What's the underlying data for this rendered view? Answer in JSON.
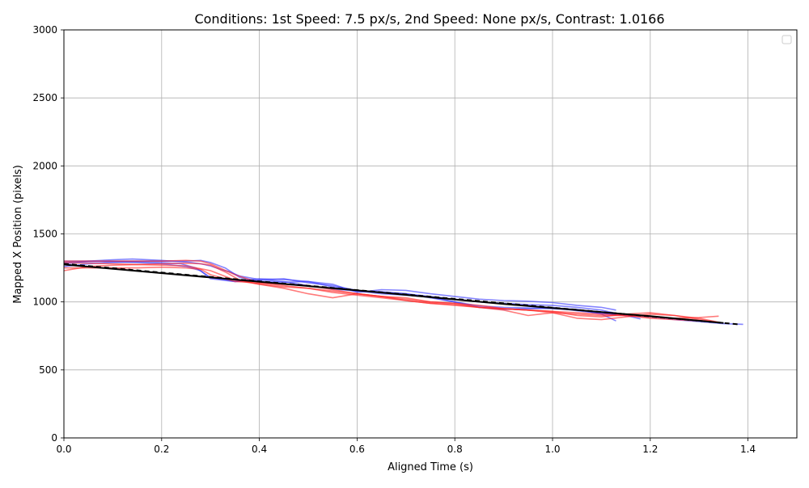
{
  "chart_data": {
    "type": "line",
    "title": "Conditions: 1st Speed: 7.5 px/s, 2nd Speed: None px/s, Contrast: 1.0166",
    "xlabel": "Aligned Time (s)",
    "ylabel": "Mapped X Position (pixels)",
    "xlim": [
      0,
      1.5
    ],
    "ylim": [
      0,
      3000
    ],
    "xticks": [
      0.0,
      0.2,
      0.4,
      0.6,
      0.8,
      1.0,
      1.2,
      1.4
    ],
    "xtick_labels": [
      "0.0",
      "0.2",
      "0.4",
      "0.6",
      "0.8",
      "1.0",
      "1.2",
      "1.4"
    ],
    "yticks": [
      0,
      500,
      1000,
      1500,
      2000,
      2500,
      3000
    ],
    "ytick_labels": [
      "0",
      "500",
      "1000",
      "1500",
      "2000",
      "2500",
      "3000"
    ],
    "grid": true,
    "legend": "top-right (empty)",
    "colors": {
      "series_a": "#3333ff",
      "series_b": "#ff2222",
      "reference": "#000000"
    },
    "series": [
      {
        "group": "a",
        "x": [
          0.0,
          0.05,
          0.1,
          0.14,
          0.2,
          0.24,
          0.26,
          0.28,
          0.3,
          0.32,
          0.34,
          0.36,
          0.4,
          0.45,
          0.5,
          0.55,
          0.6,
          0.65,
          0.7,
          0.75,
          0.8,
          0.85,
          0.9,
          0.95,
          1.0,
          1.05,
          1.1,
          1.15,
          1.18
        ],
        "y": [
          1290,
          1300,
          1310,
          1315,
          1305,
          1295,
          1290,
          1280,
          1265,
          1240,
          1220,
          1190,
          1165,
          1150,
          1120,
          1095,
          1080,
          1075,
          1060,
          1040,
          1020,
          1000,
          990,
          980,
          975,
          960,
          940,
          900,
          875
        ]
      },
      {
        "group": "a",
        "x": [
          0.0,
          0.05,
          0.1,
          0.15,
          0.2,
          0.24,
          0.27,
          0.3,
          0.35,
          0.4,
          0.45,
          0.5,
          0.55,
          0.6,
          0.65,
          0.7,
          0.75,
          0.8,
          0.85,
          0.9,
          0.95,
          1.0,
          1.05,
          1.1,
          1.13
        ],
        "y": [
          1260,
          1280,
          1290,
          1295,
          1290,
          1280,
          1250,
          1180,
          1150,
          1170,
          1165,
          1150,
          1110,
          1080,
          1060,
          1050,
          1035,
          1000,
          970,
          960,
          955,
          950,
          940,
          920,
          905
        ]
      },
      {
        "group": "a",
        "x": [
          0.0,
          0.05,
          0.1,
          0.15,
          0.2,
          0.25,
          0.28,
          0.3,
          0.33,
          0.36,
          0.4,
          0.45,
          0.5,
          0.55,
          0.6,
          0.65,
          0.7,
          0.75,
          0.8,
          0.85,
          0.9,
          0.95,
          1.0,
          1.05,
          1.1,
          1.13
        ],
        "y": [
          1280,
          1295,
          1300,
          1300,
          1300,
          1300,
          1305,
          1290,
          1250,
          1180,
          1150,
          1145,
          1150,
          1130,
          1070,
          1090,
          1085,
          1060,
          1040,
          1020,
          1010,
          1005,
          995,
          975,
          960,
          940
        ]
      },
      {
        "group": "a",
        "x": [
          0.0,
          0.05,
          0.1,
          0.15,
          0.2,
          0.25,
          0.28,
          0.3,
          0.35,
          0.4,
          0.45,
          0.5,
          0.55,
          0.6,
          0.65,
          0.7,
          0.75,
          0.8,
          0.85,
          0.9,
          0.95,
          1.0,
          1.05,
          1.1,
          1.13
        ],
        "y": [
          1300,
          1300,
          1295,
          1290,
          1280,
          1260,
          1230,
          1170,
          1150,
          1160,
          1170,
          1140,
          1120,
          1085,
          1070,
          1060,
          1030,
          1000,
          960,
          945,
          950,
          955,
          945,
          910,
          860
        ]
      },
      {
        "group": "a",
        "x": [
          1.0,
          1.05,
          1.1,
          1.15,
          1.2,
          1.25,
          1.3,
          1.35,
          1.39
        ],
        "y": [
          960,
          935,
          915,
          900,
          890,
          870,
          855,
          840,
          835
        ]
      },
      {
        "group": "b",
        "x": [
          0.0,
          0.05,
          0.1,
          0.15,
          0.2,
          0.25,
          0.28,
          0.3,
          0.33,
          0.36,
          0.4,
          0.45,
          0.5,
          0.55,
          0.6,
          0.65,
          0.7,
          0.75,
          0.8,
          0.85,
          0.9,
          0.95,
          1.0,
          1.05,
          1.1,
          1.15,
          1.2,
          1.25,
          1.3,
          1.34
        ],
        "y": [
          1230,
          1260,
          1270,
          1275,
          1280,
          1285,
          1280,
          1270,
          1220,
          1160,
          1130,
          1100,
          1060,
          1030,
          1060,
          1040,
          1010,
          990,
          975,
          960,
          940,
          900,
          920,
          880,
          870,
          890,
          910,
          900,
          880,
          850
        ]
      },
      {
        "group": "b",
        "x": [
          0.0,
          0.05,
          0.1,
          0.15,
          0.2,
          0.25,
          0.28,
          0.3,
          0.35,
          0.4,
          0.45,
          0.5,
          0.55,
          0.6,
          0.65,
          0.7,
          0.75,
          0.8,
          0.85,
          0.9,
          0.95,
          1.0,
          1.05,
          1.1,
          1.15,
          1.2,
          1.25,
          1.3,
          1.34
        ],
        "y": [
          1300,
          1300,
          1300,
          1300,
          1300,
          1305,
          1300,
          1280,
          1200,
          1140,
          1130,
          1120,
          1090,
          1060,
          1040,
          1020,
          1000,
          990,
          975,
          950,
          940,
          930,
          920,
          910,
          900,
          890,
          880,
          885,
          895
        ]
      },
      {
        "group": "b",
        "x": [
          0.0,
          0.05,
          0.1,
          0.15,
          0.2,
          0.25,
          0.3,
          0.35,
          0.4,
          0.45,
          0.5,
          0.55,
          0.6,
          0.65,
          0.7,
          0.75,
          0.8,
          0.85,
          0.9,
          0.95,
          1.0,
          1.05,
          1.1,
          1.15,
          1.2,
          1.25,
          1.3,
          1.34
        ],
        "y": [
          1290,
          1285,
          1280,
          1275,
          1270,
          1265,
          1230,
          1160,
          1130,
          1110,
          1100,
          1080,
          1060,
          1040,
          1030,
          1000,
          990,
          960,
          950,
          940,
          930,
          900,
          890,
          910,
          920,
          900,
          870,
          850
        ]
      },
      {
        "group": "b",
        "x": [
          0.0,
          0.05,
          0.1,
          0.15,
          0.2,
          0.25,
          0.28,
          0.3,
          0.35,
          0.4,
          0.45,
          0.5,
          0.55,
          0.6,
          0.65,
          0.7,
          0.75,
          0.8,
          0.85,
          0.9,
          0.95,
          1.0,
          1.05,
          1.1,
          1.15,
          1.2,
          1.25,
          1.3
        ],
        "y": [
          1250,
          1250,
          1250,
          1250,
          1255,
          1250,
          1240,
          1200,
          1150,
          1140,
          1120,
          1100,
          1070,
          1050,
          1030,
          1010,
          990,
          980,
          960,
          950,
          940,
          920,
          910,
          900,
          900,
          880,
          870,
          860
        ]
      },
      {
        "group": "ref",
        "x": [
          0.0,
          1.38
        ],
        "y": [
          1280,
          835
        ],
        "dashed": true
      },
      {
        "group": "ref",
        "x": [
          0.0,
          0.3,
          0.6,
          0.9,
          1.2,
          1.35
        ],
        "y": [
          1275,
          1180,
          1085,
          985,
          895,
          845
        ],
        "dashed": false
      }
    ]
  }
}
